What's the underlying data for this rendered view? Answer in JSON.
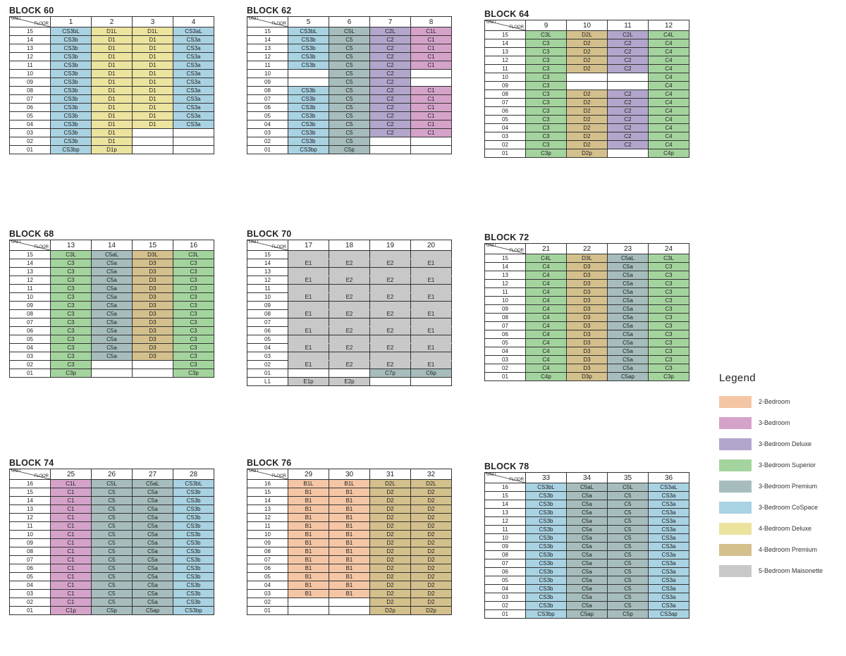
{
  "corner": {
    "unit": "UNIT",
    "floor": "FLOOR"
  },
  "colors": {
    "B": "#f5c6a5",
    "C1": "#d5a3c9",
    "C2": "#b2a6cc",
    "C3": "#a4d49e",
    "C5": "#a7bdbd",
    "CS": "#a9d2e2",
    "D1": "#ece39f",
    "D2": "#d4c08c",
    "E": "#c8c8c8",
    "none": "#ffffff"
  },
  "legend": {
    "title": "Legend",
    "items": [
      {
        "label": "2-Bedroom",
        "color": "#f5c6a5"
      },
      {
        "label": "3-Bedroom",
        "color": "#d5a3c9"
      },
      {
        "label": "3-Bedroom Deluxe",
        "color": "#b2a6cc"
      },
      {
        "label": "3-Bedroom Superior",
        "color": "#a4d49e"
      },
      {
        "label": "3-Bedroom Premium",
        "color": "#a7bdbd"
      },
      {
        "label": "3-Bedroom CoSpace",
        "color": "#a9d2e2"
      },
      {
        "label": "4-Bedroom Deluxe",
        "color": "#ece39f"
      },
      {
        "label": "4-Bedroom Premium",
        "color": "#d4c08c"
      },
      {
        "label": "5-Bedroom Maisonette",
        "color": "#c8c8c8"
      }
    ]
  },
  "blocks": [
    {
      "name": "BLOCK 60",
      "units": [
        "1",
        "2",
        "3",
        "4"
      ],
      "rows": [
        [
          "15",
          "CS3bL",
          "D1L",
          "D1L",
          "CS3aL"
        ],
        [
          "14",
          "CS3b",
          "D1",
          "D1",
          "CS3a"
        ],
        [
          "13",
          "CS3b",
          "D1",
          "D1",
          "CS3a"
        ],
        [
          "12",
          "CS3b",
          "D1",
          "D1",
          "CS3a"
        ],
        [
          "11",
          "CS3b",
          "D1",
          "D1",
          "CS3a"
        ],
        [
          "10",
          "CS3b",
          "D1",
          "D1",
          "CS3a"
        ],
        [
          "09",
          "CS3b",
          "D1",
          "D1",
          "CS3a"
        ],
        [
          "08",
          "CS3b",
          "D1",
          "D1",
          "CS3a"
        ],
        [
          "07",
          "CS3b",
          "D1",
          "D1",
          "CS3a"
        ],
        [
          "06",
          "CS3b",
          "D1",
          "D1",
          "CS3a"
        ],
        [
          "05",
          "CS3b",
          "D1",
          "D1",
          "CS3a"
        ],
        [
          "04",
          "CS3b",
          "D1",
          "D1",
          "CS3a"
        ],
        [
          "03",
          "CS3b",
          "D1",
          "",
          ""
        ],
        [
          "02",
          "CS3b",
          "D1",
          "",
          ""
        ],
        [
          "01",
          "CS3bp",
          "D1p",
          "",
          ""
        ]
      ]
    },
    {
      "name": "BLOCK 62",
      "units": [
        "5",
        "6",
        "7",
        "8"
      ],
      "rows": [
        [
          "15",
          "CS3bL",
          "C5L",
          "C2L",
          "C1L"
        ],
        [
          "14",
          "CS3b",
          "C5",
          "C2",
          "C1"
        ],
        [
          "13",
          "CS3b",
          "C5",
          "C2",
          "C1"
        ],
        [
          "12",
          "CS3b",
          "C5",
          "C2",
          "C1"
        ],
        [
          "11",
          "CS3b",
          "C5",
          "C2",
          "C1"
        ],
        [
          "10",
          "",
          "C5",
          "C2",
          ""
        ],
        [
          "09",
          "",
          "C5",
          "C2",
          ""
        ],
        [
          "08",
          "CS3b",
          "C5",
          "C2",
          "C1"
        ],
        [
          "07",
          "CS3b",
          "C5",
          "C2",
          "C1"
        ],
        [
          "06",
          "CS3b",
          "C5",
          "C2",
          "C1"
        ],
        [
          "05",
          "CS3b",
          "C5",
          "C2",
          "C1"
        ],
        [
          "04",
          "CS3b",
          "C5",
          "C2",
          "C1"
        ],
        [
          "03",
          "CS3b",
          "C5",
          "C2",
          "C1"
        ],
        [
          "02",
          "CS3b",
          "C5",
          "",
          ""
        ],
        [
          "01",
          "CS3bp",
          "C5p",
          "",
          ""
        ]
      ]
    },
    {
      "name": "BLOCK 64",
      "units": [
        "9",
        "10",
        "11",
        "12"
      ],
      "rows": [
        [
          "15",
          "C3L",
          "D2L",
          "C2L",
          "C4L"
        ],
        [
          "14",
          "C3",
          "D2",
          "C2",
          "C4"
        ],
        [
          "13",
          "C3",
          "D2",
          "C2",
          "C4"
        ],
        [
          "12",
          "C3",
          "D2",
          "C2",
          "C4"
        ],
        [
          "11",
          "C3",
          "D2",
          "C2",
          "C4"
        ],
        [
          "10",
          "C3",
          "",
          "",
          "C4"
        ],
        [
          "09",
          "C3",
          "",
          "",
          "C4"
        ],
        [
          "08",
          "C3",
          "D2",
          "C2",
          "C4"
        ],
        [
          "07",
          "C3",
          "D2",
          "C2",
          "C4"
        ],
        [
          "06",
          "C3",
          "D2",
          "C2",
          "C4"
        ],
        [
          "05",
          "C3",
          "D2",
          "C2",
          "C4"
        ],
        [
          "04",
          "C3",
          "D2",
          "C2",
          "C4"
        ],
        [
          "03",
          "C3",
          "D2",
          "C2",
          "C4"
        ],
        [
          "02",
          "C3",
          "D2",
          "C2",
          "C4"
        ],
        [
          "01",
          "C3p",
          "D2p",
          "",
          "C4p"
        ]
      ]
    },
    {
      "name": "BLOCK 68",
      "units": [
        "13",
        "14",
        "15",
        "16"
      ],
      "rows": [
        [
          "15",
          "C3L",
          "C5aL",
          "D3L",
          "C3L"
        ],
        [
          "14",
          "C3",
          "C5a",
          "D3",
          "C3"
        ],
        [
          "13",
          "C3",
          "C5a",
          "D3",
          "C3"
        ],
        [
          "12",
          "C3",
          "C5a",
          "D3",
          "C3"
        ],
        [
          "11",
          "C3",
          "C5a",
          "D3",
          "C3"
        ],
        [
          "10",
          "C3",
          "C5a",
          "D3",
          "C3"
        ],
        [
          "09",
          "C3",
          "C5a",
          "D3",
          "C3"
        ],
        [
          "08",
          "C3",
          "C5a",
          "D3",
          "C3"
        ],
        [
          "07",
          "C3",
          "C5a",
          "D3",
          "C3"
        ],
        [
          "06",
          "C3",
          "C5a",
          "D3",
          "C3"
        ],
        [
          "05",
          "C3",
          "C5a",
          "D3",
          "C3"
        ],
        [
          "04",
          "C3",
          "C5a",
          "D3",
          "C3"
        ],
        [
          "03",
          "C3",
          "C5a",
          "D3",
          "C3"
        ],
        [
          "02",
          "C3",
          "",
          "",
          "C3"
        ],
        [
          "01",
          "C3p",
          "",
          "",
          "C3p"
        ]
      ]
    },
    {
      "name": "BLOCK 70",
      "units": [
        "17",
        "18",
        "19",
        "20"
      ],
      "rows": [
        [
          "15",
          "",
          "",
          "",
          ""
        ],
        [
          "14",
          "E1",
          "E2",
          "E2",
          "E1"
        ],
        [
          "13",
          "",
          "",
          "",
          ""
        ],
        [
          "12",
          "E1",
          "E2",
          "E2",
          "E1"
        ],
        [
          "11",
          "",
          "",
          "",
          ""
        ],
        [
          "10",
          "E1",
          "E2",
          "E2",
          "E1"
        ],
        [
          "09",
          "",
          "",
          "",
          ""
        ],
        [
          "08",
          "E1",
          "E2",
          "E2",
          "E1"
        ],
        [
          "07",
          "",
          "",
          "",
          ""
        ],
        [
          "06",
          "E1",
          "E2",
          "E2",
          "E1"
        ],
        [
          "05",
          "",
          "",
          "",
          ""
        ],
        [
          "04",
          "E1",
          "E2",
          "E2",
          "E1"
        ],
        [
          "03",
          "",
          "",
          "",
          ""
        ],
        [
          "02",
          "E1",
          "E2",
          "E2",
          "E1"
        ],
        [
          "01",
          "",
          "",
          "C7p",
          "C6p"
        ],
        [
          "L1",
          "E1p",
          "E2p",
          "",
          ""
        ]
      ]
    },
    {
      "name": "BLOCK 72",
      "units": [
        "21",
        "22",
        "23",
        "24"
      ],
      "rows": [
        [
          "15",
          "C4L",
          "D3L",
          "C5aL",
          "C3L"
        ],
        [
          "14",
          "C4",
          "D3",
          "C5a",
          "C3"
        ],
        [
          "13",
          "C4",
          "D3",
          "C5a",
          "C3"
        ],
        [
          "12",
          "C4",
          "D3",
          "C5a",
          "C3"
        ],
        [
          "11",
          "C4",
          "D3",
          "C5a",
          "C3"
        ],
        [
          "10",
          "C4",
          "D3",
          "C5a",
          "C3"
        ],
        [
          "09",
          "C4",
          "D3",
          "C5a",
          "C3"
        ],
        [
          "08",
          "C4",
          "D3",
          "C5a",
          "C3"
        ],
        [
          "07",
          "C4",
          "D3",
          "C5a",
          "C3"
        ],
        [
          "06",
          "C4",
          "D3",
          "C5a",
          "C3"
        ],
        [
          "05",
          "C4",
          "D3",
          "C5a",
          "C3"
        ],
        [
          "04",
          "C4",
          "D3",
          "C5a",
          "C3"
        ],
        [
          "03",
          "C4",
          "D3",
          "C5a",
          "C3"
        ],
        [
          "02",
          "C4",
          "D3",
          "C5a",
          "C3"
        ],
        [
          "01",
          "C4p",
          "D3p",
          "C5ap",
          "C3p"
        ]
      ]
    },
    {
      "name": "BLOCK 74",
      "units": [
        "25",
        "26",
        "27",
        "28"
      ],
      "rows": [
        [
          "16",
          "C1L",
          "C5L",
          "C5aL",
          "CS3bL"
        ],
        [
          "15",
          "C1",
          "C5",
          "C5a",
          "CS3b"
        ],
        [
          "14",
          "C1",
          "C5",
          "C5a",
          "CS3b"
        ],
        [
          "13",
          "C1",
          "C5",
          "C5a",
          "CS3b"
        ],
        [
          "12",
          "C1",
          "C5",
          "C5a",
          "CS3b"
        ],
        [
          "11",
          "C1",
          "C5",
          "C5a",
          "CS3b"
        ],
        [
          "10",
          "C1",
          "C5",
          "C5a",
          "CS3b"
        ],
        [
          "09",
          "C1",
          "C5",
          "C5a",
          "CS3b"
        ],
        [
          "08",
          "C1",
          "C5",
          "C5a",
          "CS3b"
        ],
        [
          "07",
          "C1",
          "C5",
          "C5a",
          "CS3b"
        ],
        [
          "06",
          "C1",
          "C5",
          "C5a",
          "CS3b"
        ],
        [
          "05",
          "C1",
          "C5",
          "C5a",
          "CS3b"
        ],
        [
          "04",
          "C1",
          "C5",
          "C5a",
          "CS3b"
        ],
        [
          "03",
          "C1",
          "C5",
          "C5a",
          "CS3b"
        ],
        [
          "02",
          "C1",
          "C5",
          "C5a",
          "CS3b"
        ],
        [
          "01",
          "C1p",
          "C5p",
          "C5ap",
          "CS3bp"
        ]
      ]
    },
    {
      "name": "BLOCK 76",
      "units": [
        "29",
        "30",
        "31",
        "32"
      ],
      "rows": [
        [
          "16",
          "B1L",
          "B1L",
          "D2L",
          "D2L"
        ],
        [
          "15",
          "B1",
          "B1",
          "D2",
          "D2"
        ],
        [
          "14",
          "B1",
          "B1",
          "D2",
          "D2"
        ],
        [
          "13",
          "B1",
          "B1",
          "D2",
          "D2"
        ],
        [
          "12",
          "B1",
          "B1",
          "D2",
          "D2"
        ],
        [
          "11",
          "B1",
          "B1",
          "D2",
          "D2"
        ],
        [
          "10",
          "B1",
          "B1",
          "D2",
          "D2"
        ],
        [
          "09",
          "B1",
          "B1",
          "D2",
          "D2"
        ],
        [
          "08",
          "B1",
          "B1",
          "D2",
          "D2"
        ],
        [
          "07",
          "B1",
          "B1",
          "D2",
          "D2"
        ],
        [
          "06",
          "B1",
          "B1",
          "D2",
          "D2"
        ],
        [
          "05",
          "B1",
          "B1",
          "D2",
          "D2"
        ],
        [
          "04",
          "B1",
          "B1",
          "D2",
          "D2"
        ],
        [
          "03",
          "B1",
          "B1",
          "D2",
          "D2"
        ],
        [
          "02",
          "",
          "",
          "D2",
          "D2"
        ],
        [
          "01",
          "",
          "",
          "D2p",
          "D2p"
        ]
      ]
    },
    {
      "name": "BLOCK 78",
      "units": [
        "33",
        "34",
        "35",
        "36"
      ],
      "rows": [
        [
          "16",
          "CS3bL",
          "C5aL",
          "C5L",
          "CS3aL"
        ],
        [
          "15",
          "CS3b",
          "C5a",
          "C5",
          "CS3a"
        ],
        [
          "14",
          "CS3b",
          "C5a",
          "C5",
          "CS3a"
        ],
        [
          "13",
          "CS3b",
          "C5a",
          "C5",
          "CS3a"
        ],
        [
          "12",
          "CS3b",
          "C5a",
          "C5",
          "CS3a"
        ],
        [
          "11",
          "CS3b",
          "C5a",
          "C5",
          "CS3a"
        ],
        [
          "10",
          "CS3b",
          "C5a",
          "C5",
          "CS3a"
        ],
        [
          "09",
          "CS3b",
          "C5a",
          "C5",
          "CS3a"
        ],
        [
          "08",
          "CS3b",
          "C5a",
          "C5",
          "CS3a"
        ],
        [
          "07",
          "CS3b",
          "C5a",
          "C5",
          "CS3a"
        ],
        [
          "06",
          "CS3b",
          "C5a",
          "C5",
          "CS3a"
        ],
        [
          "05",
          "CS3b",
          "C5a",
          "C5",
          "CS3a"
        ],
        [
          "04",
          "CS3b",
          "C5a",
          "C5",
          "CS3a"
        ],
        [
          "03",
          "CS3b",
          "C5a",
          "C5",
          "CS3a"
        ],
        [
          "02",
          "CS3b",
          "C5a",
          "C5",
          "CS3a"
        ],
        [
          "01",
          "CS3bp",
          "C5ap",
          "C5p",
          "CS3ap"
        ]
      ]
    }
  ]
}
